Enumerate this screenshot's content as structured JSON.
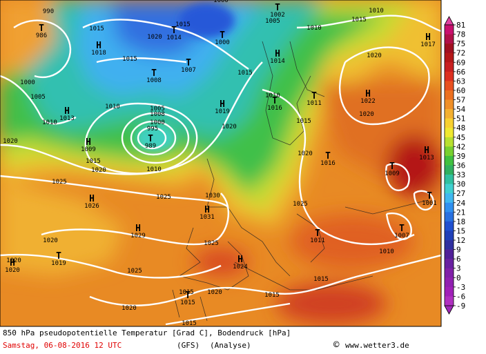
{
  "map": {
    "centers": [
      {
        "letter": "T",
        "value": 986
      },
      {
        "letter": "H",
        "value": 1018
      },
      {
        "letter": "T",
        "value": 1014
      },
      {
        "letter": "T",
        "value": 1008
      },
      {
        "letter": "T",
        "value": 1007
      },
      {
        "letter": "T",
        "value": 1000
      },
      {
        "letter": "T",
        "value": 1002
      },
      {
        "letter": "H",
        "value": 1014
      },
      {
        "letter": "H",
        "value": 1017
      },
      {
        "letter": "H",
        "value": 1013
      },
      {
        "letter": "H",
        "value": 1019
      },
      {
        "letter": "T",
        "value": 1016
      },
      {
        "letter": "T",
        "value": 1011
      },
      {
        "letter": "H",
        "value": 1022
      },
      {
        "letter": "T",
        "value": 989
      },
      {
        "letter": "H",
        "value": 1009
      },
      {
        "letter": "T",
        "value": 1016
      },
      {
        "letter": "T",
        "value": 1009
      },
      {
        "letter": "H",
        "value": 1013
      },
      {
        "letter": "T",
        "value": 1001
      },
      {
        "letter": "H",
        "value": 1026
      },
      {
        "letter": "H",
        "value": 1031
      },
      {
        "letter": "H",
        "value": 1029
      },
      {
        "letter": "T",
        "value": 1011
      },
      {
        "letter": "T",
        "value": 1007
      },
      {
        "letter": "T",
        "value": 1019
      },
      {
        "letter": "H",
        "value": 1020
      },
      {
        "letter": "H",
        "value": 1024
      },
      {
        "letter": "T",
        "value": 1015
      }
    ],
    "isobar_labels": [
      990,
      1015,
      1020,
      1015,
      1010,
      1015,
      1005,
      1010,
      1000,
      1005,
      1010,
      1020,
      1010,
      1005,
      1000,
      995,
      1015,
      1020,
      1010,
      1025,
      1025,
      1030,
      1020,
      1015,
      1010,
      1015,
      1020,
      1020,
      1020,
      1025,
      1020,
      1020,
      1025,
      1025,
      1020,
      1020,
      1015,
      1015,
      1015,
      1010,
      1015,
      1015,
      1000,
      1008
    ]
  },
  "legend": {
    "ticks": [
      81,
      78,
      75,
      72,
      69,
      66,
      63,
      60,
      57,
      54,
      51,
      48,
      45,
      42,
      39,
      36,
      33,
      30,
      27,
      24,
      21,
      18,
      15,
      12,
      9,
      6,
      3,
      0,
      -3,
      -6,
      -9
    ],
    "colors": [
      "#c8106e",
      "#b01048",
      "#a01020",
      "#b41818",
      "#c82020",
      "#dc3020",
      "#e85020",
      "#ec7020",
      "#f09028",
      "#f4b030",
      "#f8d030",
      "#f0e830",
      "#b8e030",
      "#78d030",
      "#40c040",
      "#30b060",
      "#30c0a0",
      "#40d0d0",
      "#40b8f0",
      "#3090f0",
      "#2870e0",
      "#2050d0",
      "#2040b8",
      "#3030a0",
      "#502098",
      "#6820a0",
      "#8020a8",
      "#9020b0",
      "#a020b8",
      "#b030c0"
    ],
    "top_color": "#e040a0",
    "bottom_color": "#a028b8"
  },
  "footer": {
    "title": "850 hPa pseudopotentielle Temperatur [Grad C], Bodendruck [hPa]",
    "date": "Samstag, 06-08-2016  12 UTC",
    "model": "(GFS)",
    "run": "(Analyse)",
    "copyright": "©",
    "site": "www.wetter3.de"
  }
}
